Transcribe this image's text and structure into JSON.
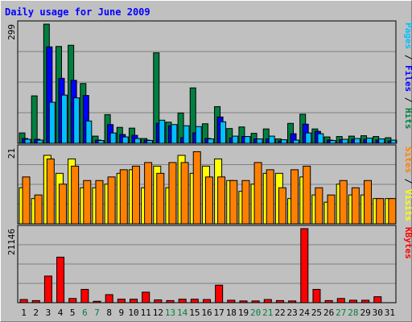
{
  "chart_data": {
    "type": "bar",
    "title": "Daily usage for June 2009",
    "days": [
      "1",
      "2",
      "3",
      "4",
      "5",
      "6",
      "7",
      "8",
      "9",
      "10",
      "11",
      "12",
      "13",
      "14",
      "15",
      "16",
      "17",
      "18",
      "19",
      "20",
      "21",
      "22",
      "23",
      "24",
      "25",
      "26",
      "27",
      "28",
      "29",
      "30",
      "31"
    ],
    "weekend_days": [
      "6",
      "7",
      "13",
      "14",
      "20",
      "21",
      "27",
      "28"
    ],
    "panels": [
      {
        "id": "hits",
        "ymax_label": "299",
        "ymax": 299,
        "series": [
          {
            "name": "Hits",
            "color": "#008040",
            "values": [
              26,
              119,
              299,
              243,
              246,
              150,
              18,
              72,
              40,
              38,
              12,
              227,
              53,
              76,
              139,
              49,
              92,
              37,
              41,
              25,
              36,
              11,
              50,
              73,
              36,
              16,
              17,
              18,
              19,
              17,
              14
            ]
          },
          {
            "name": "Files",
            "color": "#0000ff",
            "values": [
              12,
              10,
              242,
              163,
              158,
              120,
              8,
              47,
              22,
              20,
              8,
              50,
              44,
              14,
              26,
              12,
              66,
              13,
              17,
              11,
              11,
              6,
              24,
              48,
              30,
              8,
              9,
              10,
              10,
              8,
              6
            ]
          },
          {
            "name": "Pages",
            "color": "#00c0ff",
            "values": [
              10,
              8,
              103,
              121,
              114,
              56,
              7,
              26,
              16,
              12,
              7,
              58,
              47,
              44,
              42,
              11,
              54,
              18,
              17,
              11,
              18,
              9,
              8,
              26,
              24,
              7,
              10,
              12,
              13,
              11,
              8
            ]
          }
        ],
        "axis_label_parts": [
          {
            "text": "Pages",
            "color": "#00c0ff"
          },
          {
            "text": " / ",
            "color": "#000000"
          },
          {
            "text": "Files",
            "color": "#0000ff"
          },
          {
            "text": " / ",
            "color": "#000000"
          },
          {
            "text": "Hits",
            "color": "#008040"
          }
        ]
      },
      {
        "id": "visits",
        "ymax_label": "21",
        "ymax": 21,
        "series": [
          {
            "name": "Visits",
            "color": "#ffff00",
            "values": [
              10,
              7,
              19,
              14,
              18,
              10,
              10,
              11,
              14,
              15,
              10,
              16,
              10,
              19,
              14,
              16,
              18,
              12,
              9,
              11,
              14,
              14,
              7,
              13,
              8,
              6,
              11,
              8,
              8,
              7,
              7
            ]
          },
          {
            "name": "Sites",
            "color": "#ff8000",
            "values": [
              13,
              8,
              18,
              11,
              16,
              12,
              12,
              13,
              15,
              16,
              17,
              14,
              17,
              17,
              20,
              13,
              13,
              12,
              12,
              17,
              15,
              10,
              15,
              16,
              10,
              8,
              12,
              10,
              12,
              7,
              7
            ]
          }
        ],
        "axis_label_parts": [
          {
            "text": "Sites",
            "color": "#ff8000"
          },
          {
            "text": " / ",
            "color": "#000000"
          },
          {
            "text": "Visits",
            "color": "#ffff00"
          }
        ]
      },
      {
        "id": "kbytes",
        "ymax_label": "21146",
        "ymax": 21146,
        "series": [
          {
            "name": "KBytes",
            "color": "#ff0000",
            "values": [
              900,
              600,
              7600,
              13000,
              1200,
              3800,
              400,
              2300,
              1000,
              1000,
              3000,
              800,
              600,
              1000,
              1000,
              900,
              5000,
              700,
              500,
              500,
              900,
              600,
              500,
              21146,
              3800,
              600,
              1200,
              700,
              700,
              1700,
              0
            ]
          }
        ],
        "axis_label_parts": [
          {
            "text": "KBytes",
            "color": "#ff0000"
          }
        ]
      }
    ],
    "grid": true,
    "ylabel_position": "right"
  }
}
